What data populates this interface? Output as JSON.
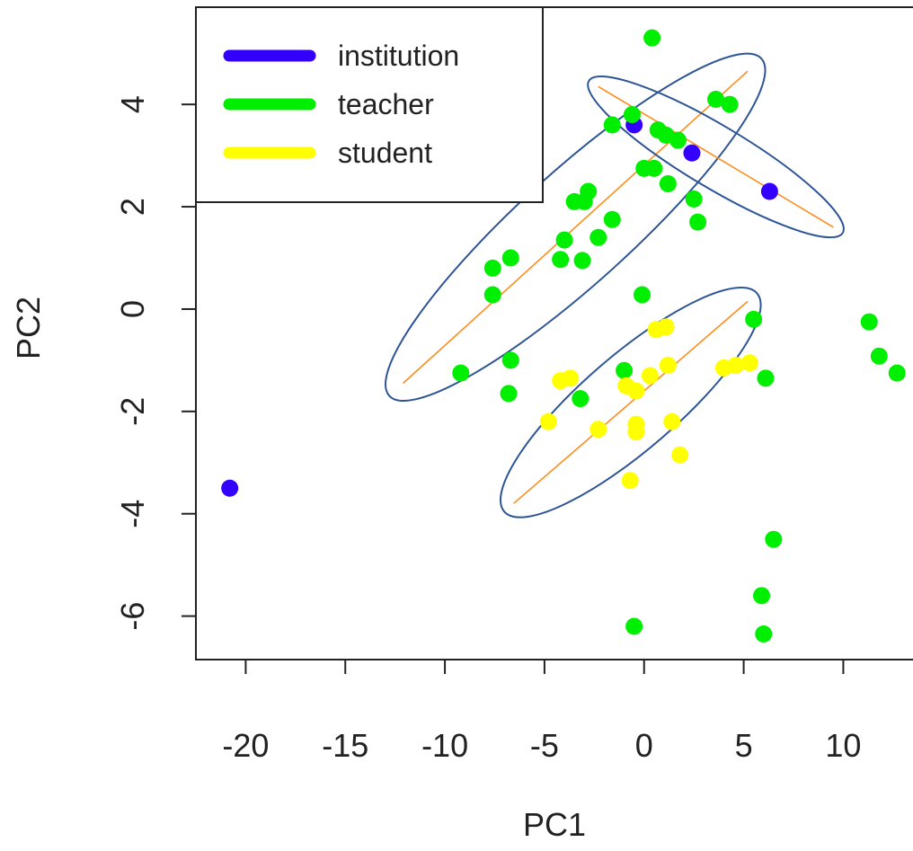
{
  "chart_data": {
    "type": "scatter",
    "title": "",
    "xlabel": "PC1",
    "ylabel": "PC2",
    "xlim": [
      -22.5,
      13.5
    ],
    "ylim": [
      -6.85,
      5.9
    ],
    "xticks": [
      -20,
      -15,
      -10,
      -5,
      0,
      5,
      10
    ],
    "xtick_labels": [
      "-20",
      "-15",
      "-10",
      "-5",
      "0",
      "5",
      "10"
    ],
    "yticks": [
      -6,
      -4,
      -2,
      0,
      2,
      4
    ],
    "ytick_labels": [
      "-6",
      "-4",
      "-2",
      "0",
      "2",
      "4"
    ],
    "grid": false,
    "legend_position": "top-left",
    "series": [
      {
        "name": "institution",
        "color": "#3300ff",
        "points": [
          [
            -20.8,
            -3.5
          ],
          [
            -0.5,
            3.6
          ],
          [
            2.4,
            3.05
          ],
          [
            6.3,
            2.3
          ]
        ]
      },
      {
        "name": "teacher",
        "color": "#00ee00",
        "points": [
          [
            0.4,
            5.3
          ],
          [
            3.6,
            4.1
          ],
          [
            4.3,
            4.0
          ],
          [
            -0.6,
            3.8
          ],
          [
            -1.6,
            3.6
          ],
          [
            0.7,
            3.5
          ],
          [
            1.1,
            3.4
          ],
          [
            1.7,
            3.3
          ],
          [
            0.0,
            2.75
          ],
          [
            0.5,
            2.75
          ],
          [
            1.2,
            2.45
          ],
          [
            -2.8,
            2.3
          ],
          [
            -3.5,
            2.1
          ],
          [
            -3.0,
            2.1
          ],
          [
            2.5,
            2.15
          ],
          [
            2.7,
            1.7
          ],
          [
            -1.6,
            1.75
          ],
          [
            -2.3,
            1.4
          ],
          [
            -4.0,
            1.35
          ],
          [
            -6.7,
            1.0
          ],
          [
            -4.2,
            0.97
          ],
          [
            -3.1,
            0.95
          ],
          [
            -7.6,
            0.8
          ],
          [
            -7.6,
            0.28
          ],
          [
            -0.1,
            0.28
          ],
          [
            -9.2,
            -1.25
          ],
          [
            -6.7,
            -1.0
          ],
          [
            -6.8,
            -1.65
          ],
          [
            -1.0,
            -1.2
          ],
          [
            -3.2,
            -1.75
          ],
          [
            5.5,
            -0.2
          ],
          [
            6.1,
            -1.35
          ],
          [
            11.3,
            -0.25
          ],
          [
            11.8,
            -0.92
          ],
          [
            12.7,
            -1.25
          ],
          [
            6.5,
            -4.5
          ],
          [
            5.9,
            -5.6
          ],
          [
            -0.5,
            -6.2
          ],
          [
            6.0,
            -6.35
          ]
        ]
      },
      {
        "name": "student",
        "color": "#ffff00",
        "points": [
          [
            0.6,
            -0.4
          ],
          [
            1.1,
            -0.35
          ],
          [
            4.0,
            -1.15
          ],
          [
            4.6,
            -1.1
          ],
          [
            5.3,
            -1.05
          ],
          [
            -4.2,
            -1.4
          ],
          [
            -3.7,
            -1.35
          ],
          [
            0.3,
            -1.3
          ],
          [
            1.2,
            -1.1
          ],
          [
            -0.9,
            -1.5
          ],
          [
            -0.4,
            -1.6
          ],
          [
            -4.8,
            -2.2
          ],
          [
            -2.3,
            -2.35
          ],
          [
            -0.4,
            -2.25
          ],
          [
            -0.4,
            -2.4
          ],
          [
            1.4,
            -2.2
          ],
          [
            1.8,
            -2.85
          ],
          [
            -0.7,
            -3.35
          ]
        ]
      }
    ],
    "ellipses": [
      {
        "center": [
          -1.45,
          1.6
        ],
        "major_axis_end_a": [
          -12.1,
          -1.45
        ],
        "major_axis_end_b": [
          5.2,
          4.65
        ],
        "semi_minor": 2.05
      },
      {
        "center": [
          3.45,
          1.4
        ],
        "major_axis_end_a": [
          -2.3,
          4.35
        ],
        "major_axis_end_b": [
          9.5,
          1.6
        ],
        "semi_minor": 0.95
      },
      {
        "center": [
          -0.65,
          -1.85
        ],
        "major_axis_end_a": [
          -6.55,
          -3.8
        ],
        "major_axis_end_b": [
          5.2,
          0.15
        ],
        "semi_minor": 1.7
      }
    ],
    "ellipse_color": "#2d5596",
    "axis_line_color": "#ff8c1a"
  }
}
